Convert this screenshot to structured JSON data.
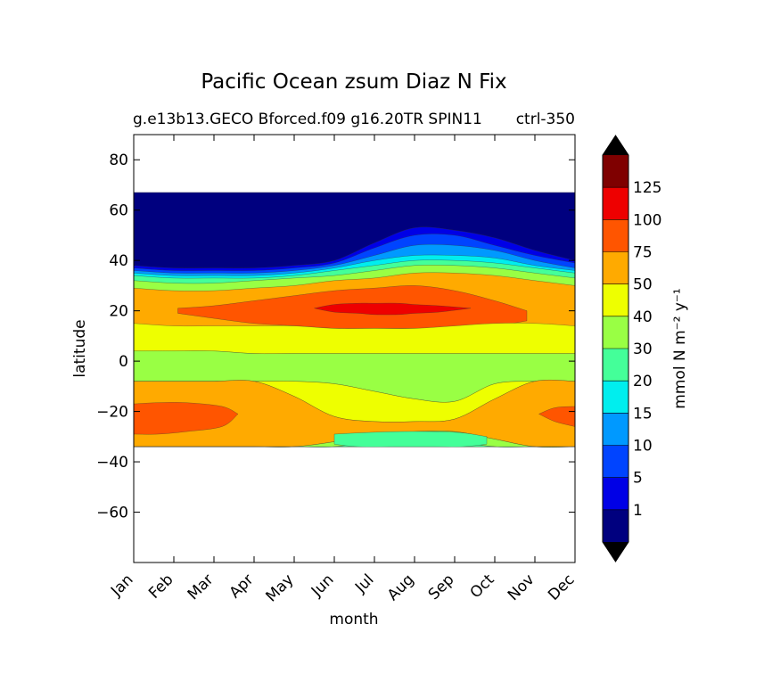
{
  "chart_data": {
    "type": "contour",
    "title": "Pacific Ocean zsum Diaz N Fix",
    "subtitle_left": "g.e13b13.GECO Bforced.f09 g16.20TR SPIN11",
    "subtitle_right": "ctrl-350",
    "xlabel": "month",
    "ylabel": "latitude",
    "months": [
      "Jan",
      "Feb",
      "Mar",
      "Apr",
      "May",
      "Jun",
      "Jul",
      "Aug",
      "Sep",
      "Oct",
      "Nov",
      "Dec"
    ],
    "xlim": [
      1,
      12
    ],
    "ylim": [
      -80,
      90
    ],
    "yticks": [
      "80",
      "60",
      "40",
      "20",
      "0",
      "−20",
      "−40",
      "−60"
    ],
    "ytick_values": [
      80,
      60,
      40,
      20,
      0,
      -20,
      -40,
      -60
    ],
    "data_lat_range": [
      -34,
      67
    ],
    "colorbar": {
      "label": "mmol N m⁻² y⁻¹",
      "tick_labels": [
        "1",
        "5",
        "10",
        "15",
        "20",
        "30",
        "40",
        "50",
        "75",
        "100",
        "125"
      ],
      "colors": [
        "#00007f",
        "#0000e6",
        "#0044ff",
        "#0099ff",
        "#00eeee",
        "#44ff99",
        "#99ff44",
        "#eeff00",
        "#ffaa00",
        "#ff5500",
        "#ee0000",
        "#7f0000"
      ],
      "extend": "both"
    },
    "fields": {
      "color_index_to_band": "contour bands drawn with colorbar.colors",
      "nitrogen_fixation_bands": [
        {
          "band": 0,
          "lat_top_by_month": [
            67,
            67,
            67,
            67,
            67,
            67,
            67,
            67,
            67,
            67,
            67,
            67
          ]
        },
        {
          "band": 1,
          "lat_top_by_month": [
            38,
            37,
            37,
            37,
            38,
            40,
            47,
            53,
            52,
            49,
            44,
            40
          ]
        },
        {
          "band": 2,
          "lat_top_by_month": [
            37,
            36,
            36,
            36,
            37,
            39,
            45,
            50,
            50,
            46,
            42,
            39
          ]
        },
        {
          "band": 3,
          "lat_top_by_month": [
            36,
            35,
            35,
            35,
            36,
            38,
            42,
            46,
            46,
            44,
            40,
            37
          ]
        },
        {
          "band": 4,
          "lat_top_by_month": [
            35,
            34,
            34,
            34,
            35,
            37,
            40,
            42,
            42,
            41,
            38,
            36
          ]
        },
        {
          "band": 5,
          "lat_top_by_month": [
            34,
            33,
            33,
            33,
            34,
            36,
            38,
            40,
            40,
            39,
            37,
            35
          ]
        },
        {
          "band": 6,
          "lat_top_by_month": [
            32,
            31,
            31,
            32,
            33,
            34,
            36,
            38,
            38,
            37,
            35,
            33
          ]
        },
        {
          "band": 8,
          "lat_top_by_month": [
            29,
            28,
            28,
            29,
            30,
            32,
            33,
            35,
            35,
            34,
            32,
            30
          ]
        }
      ]
    }
  }
}
